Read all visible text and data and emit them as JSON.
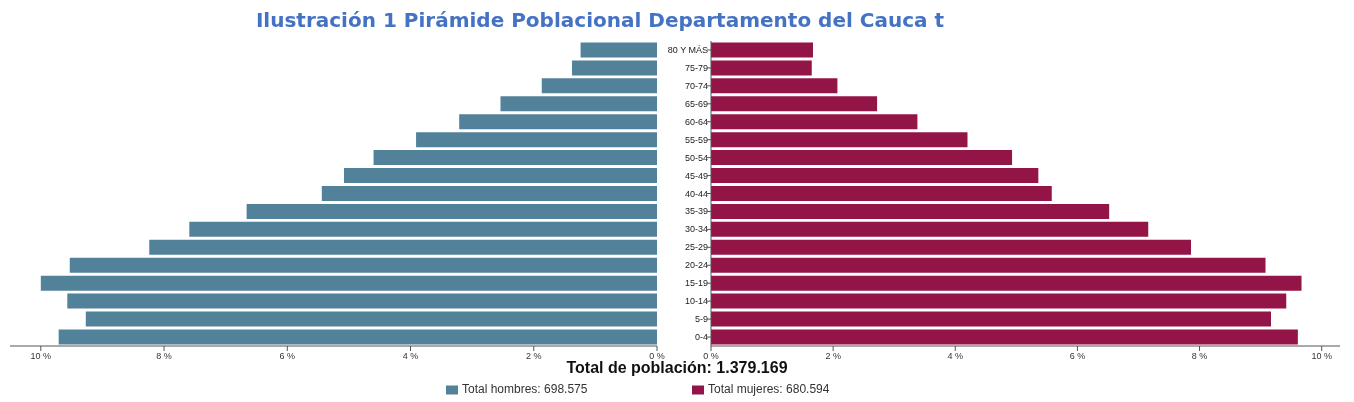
{
  "chart_data": [
    {
      "type": "bar",
      "orientation": "horizontal",
      "title": "Ilustración 1 Pirámide Poblacional Departamento del Cauca t",
      "annotations": [
        "Total de población: 1.379.169"
      ],
      "categories": [
        "80 Y MÁS",
        "75-79",
        "70-74",
        "65-69",
        "60-64",
        "55-59",
        "50-54",
        "45-49",
        "40-44",
        "35-39",
        "30-34",
        "25-29",
        "20-24",
        "15-19",
        "10-14",
        "5-9",
        "0-4"
      ],
      "series": [
        {
          "name": "Total hombres: 698.575",
          "color": "#52829a",
          "values": [
            1.24,
            1.38,
            1.87,
            2.54,
            3.21,
            3.91,
            4.6,
            5.08,
            5.44,
            6.66,
            7.59,
            8.24,
            9.53,
            10.0,
            9.57,
            9.27,
            9.71
          ]
        }
      ],
      "xlim": [
        10.5,
        0
      ],
      "xticks": [
        {
          "value": 10,
          "label": "10 %"
        },
        {
          "value": 8,
          "label": "8 %"
        },
        {
          "value": 6,
          "label": "6 %"
        },
        {
          "value": 4,
          "label": "4 %"
        },
        {
          "value": 2,
          "label": "2 %"
        },
        {
          "value": 0,
          "label": "0 %"
        }
      ],
      "grid": false,
      "legend": "bottom"
    },
    {
      "type": "bar",
      "orientation": "horizontal",
      "categories": [
        null,
        null,
        null,
        null,
        null,
        null,
        null,
        null,
        null,
        null,
        null,
        null,
        null,
        null,
        null,
        null,
        null
      ],
      "series": [
        {
          "name": "Total mujeres: 680.594",
          "color": "#931447",
          "values": [
            1.67,
            1.65,
            2.07,
            2.72,
            3.38,
            4.2,
            4.93,
            5.36,
            5.58,
            6.52,
            7.16,
            7.86,
            9.08,
            9.67,
            9.42,
            9.17,
            9.61
          ]
        }
      ],
      "xlim": [
        0,
        10.3
      ],
      "xticks": [
        {
          "value": 0,
          "label": "0 %"
        },
        {
          "value": 2,
          "label": "2 %"
        },
        {
          "value": 4,
          "label": "4 %"
        },
        {
          "value": 6,
          "label": "6 %"
        },
        {
          "value": 8,
          "label": "8 %"
        },
        {
          "value": 10,
          "label": "10 %"
        }
      ],
      "tick_labels": "x",
      "grid": false,
      "legend": "bottom"
    }
  ]
}
